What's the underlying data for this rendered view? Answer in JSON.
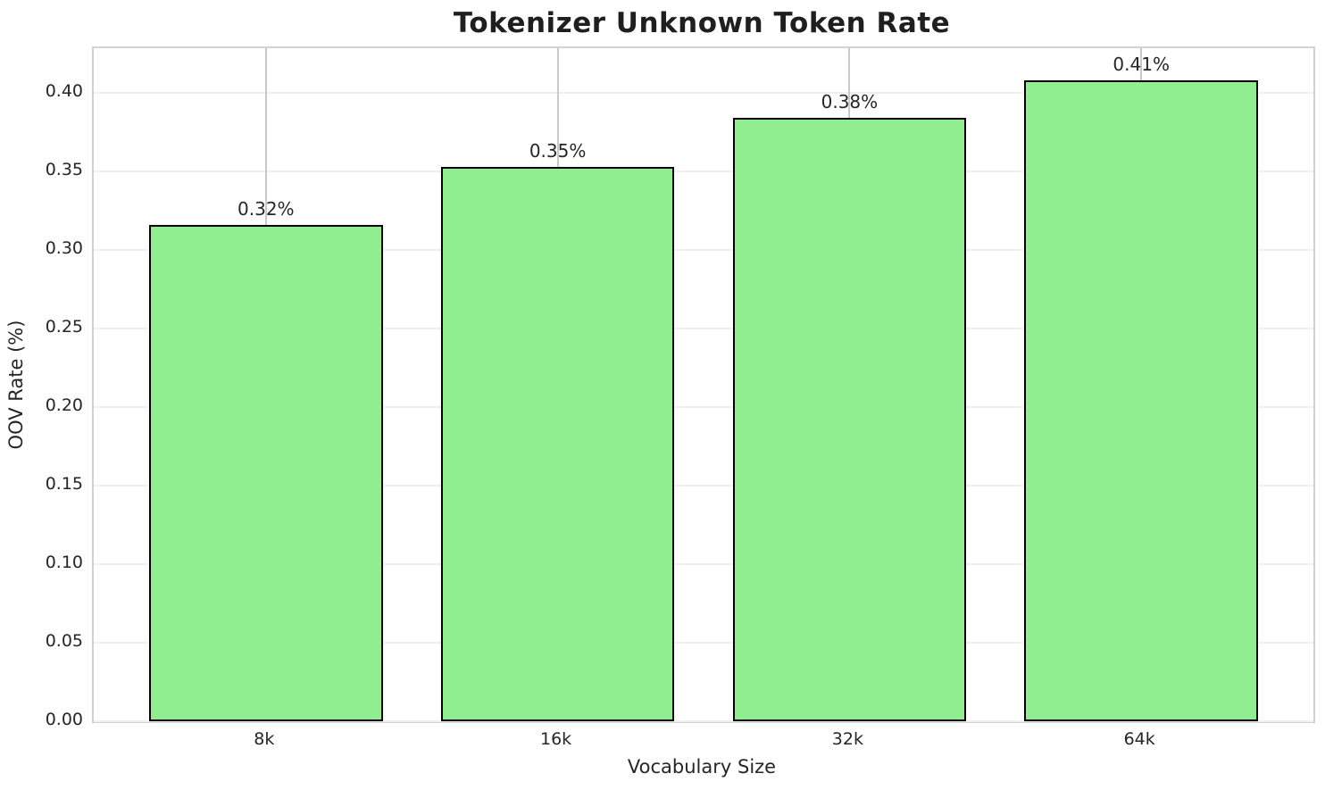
{
  "chart_data": {
    "type": "bar",
    "title": "Tokenizer Unknown Token Rate",
    "xlabel": "Vocabulary Size",
    "ylabel": "OOV Rate (%)",
    "categories": [
      "8k",
      "16k",
      "32k",
      "64k"
    ],
    "values": [
      0.316,
      0.353,
      0.384,
      0.408
    ],
    "bar_labels": [
      "0.32%",
      "0.35%",
      "0.38%",
      "0.41%"
    ],
    "yticks": [
      0.0,
      0.05,
      0.1,
      0.15,
      0.2,
      0.25,
      0.3,
      0.35,
      0.4
    ],
    "ytick_labels": [
      "0.00",
      "0.05",
      "0.10",
      "0.15",
      "0.20",
      "0.25",
      "0.30",
      "0.35",
      "0.40"
    ],
    "ylim": [
      0,
      0.4285
    ],
    "grid": true,
    "legend": false,
    "colors": {
      "bar_fill": "#90EE90",
      "bar_edge": "#000000",
      "hgrid": "#f0f0f0",
      "vgrid": "#c9c9c9",
      "spine": "#d2d2d2",
      "text": "#262626",
      "background": "#ffffff"
    }
  }
}
